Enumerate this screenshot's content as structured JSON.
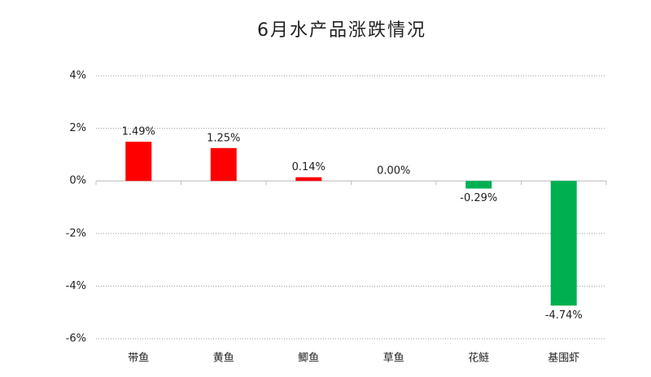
{
  "chart_data": {
    "type": "bar",
    "title": "6月水产品涨跌情况",
    "categories": [
      "带鱼",
      "黄鱼",
      "鲫鱼",
      "草鱼",
      "花鲢",
      "基围虾"
    ],
    "values": [
      1.49,
      1.25,
      0.14,
      0.0,
      -0.29,
      -4.74
    ],
    "value_labels": [
      "1.49%",
      "1.25%",
      "0.14%",
      "0.00%",
      "-0.29%",
      "-4.74%"
    ],
    "colors": [
      "#ff0000",
      "#ff0000",
      "#ff0000",
      "#ff0000",
      "#00b050",
      "#00b050"
    ],
    "ylim": [
      -6,
      4
    ],
    "yticks": [
      {
        "value": 4,
        "label": "4%"
      },
      {
        "value": 2,
        "label": "2%"
      },
      {
        "value": 0,
        "label": "0%"
      },
      {
        "value": -2,
        "label": "-2%"
      },
      {
        "value": -4,
        "label": "-4%"
      },
      {
        "value": -6,
        "label": "-6%"
      }
    ],
    "grid": true
  }
}
